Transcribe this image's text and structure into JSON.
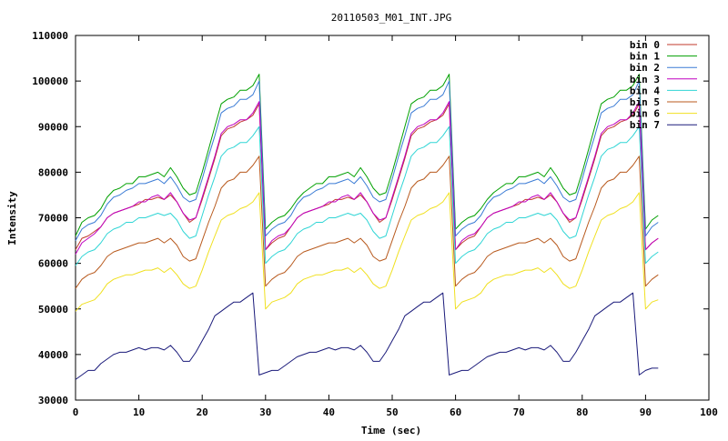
{
  "chart_data": {
    "type": "line",
    "title": "20110503_M01_INT.JPG",
    "xlabel": "Time (sec)",
    "ylabel": "Intensity",
    "xlim": [
      0,
      100
    ],
    "ylim": [
      30000,
      110000
    ],
    "xticks": [
      0,
      10,
      20,
      30,
      40,
      50,
      60,
      70,
      80,
      90,
      100
    ],
    "yticks": [
      30000,
      40000,
      50000,
      60000,
      70000,
      80000,
      90000,
      100000,
      110000
    ],
    "grid": false,
    "legend_position": "top-right",
    "x": [
      0,
      1,
      2,
      3,
      4,
      5,
      6,
      7,
      8,
      9,
      10,
      11,
      12,
      13,
      14,
      15,
      16,
      17,
      18,
      19,
      20,
      21,
      22,
      23,
      24,
      25,
      26,
      27,
      28,
      29,
      30,
      31,
      32,
      33,
      34,
      35,
      36,
      37,
      38,
      39,
      40,
      41,
      42,
      43,
      44,
      45,
      46,
      47,
      48,
      49,
      50,
      51,
      52,
      53,
      54,
      55,
      56,
      57,
      58,
      59,
      60,
      61,
      62,
      63,
      64,
      65,
      66,
      67,
      68,
      69,
      70,
      71,
      72,
      73,
      74,
      75,
      76,
      77,
      78,
      79,
      80,
      81,
      82,
      83,
      84,
      85,
      86,
      87,
      88,
      89,
      90,
      91,
      92
    ],
    "series": [
      {
        "name": "bin 0",
        "color": "#c0392b",
        "values": [
          63000,
          65500,
          66000,
          67000,
          68000,
          70000,
          71000,
          71500,
          72000,
          72500,
          73000,
          74000,
          74000,
          74500,
          74000,
          75000,
          73500,
          71000,
          69000,
          70000,
          74000,
          78500,
          83000,
          88000,
          89500,
          90000,
          91000,
          91500,
          92500,
          95000,
          63000,
          64500,
          65500,
          66000,
          68000,
          70000,
          71000,
          71500,
          72000,
          72500,
          73000,
          74000,
          74000,
          74500,
          74000,
          75000,
          73500,
          71000,
          69000,
          70000,
          74000,
          78500,
          83000,
          88000,
          89500,
          90000,
          91000,
          91500,
          92500,
          95000,
          63000,
          64500,
          65500,
          66000,
          68000,
          70000,
          71000,
          71500,
          72000,
          72500,
          73000,
          74000,
          74000,
          74500,
          74000,
          75000,
          73500,
          71000,
          69000,
          70000,
          74000,
          78500,
          83000,
          88000,
          89500,
          90000,
          91000,
          91500,
          92500,
          95000,
          63000,
          64500,
          65500
        ]
      },
      {
        "name": "bin 1",
        "color": "#00a000",
        "values": [
          66000,
          69000,
          70000,
          70500,
          72000,
          74500,
          76000,
          76500,
          77500,
          77500,
          79000,
          79000,
          79500,
          80000,
          79000,
          81000,
          79000,
          76500,
          75000,
          75500,
          80000,
          85000,
          90000,
          95000,
          96000,
          96500,
          98000,
          98000,
          99000,
          101500,
          67500,
          69000,
          70000,
          70500,
          72000,
          74000,
          75500,
          76500,
          77500,
          77500,
          79000,
          79000,
          79500,
          80000,
          79000,
          81000,
          79000,
          76500,
          75000,
          75500,
          80000,
          85000,
          90000,
          95000,
          96000,
          96500,
          98000,
          98000,
          99000,
          101500,
          67500,
          69000,
          70000,
          70500,
          72000,
          74000,
          75500,
          76500,
          77500,
          77500,
          79000,
          79000,
          79500,
          80000,
          79000,
          81000,
          79000,
          76500,
          75000,
          75500,
          80000,
          85000,
          90000,
          95000,
          96000,
          96500,
          98000,
          98000,
          99000,
          101500,
          67500,
          69500,
          70500
        ]
      },
      {
        "name": "bin 2",
        "color": "#3a7bd5",
        "values": [
          65000,
          67500,
          68500,
          69000,
          70500,
          73000,
          74500,
          75000,
          76000,
          76500,
          77500,
          77500,
          78000,
          78500,
          77500,
          79000,
          77000,
          74500,
          73500,
          74000,
          78500,
          83500,
          88000,
          93000,
          94000,
          94500,
          96000,
          96000,
          97000,
          100000,
          66000,
          67500,
          68500,
          69000,
          70500,
          73000,
          74500,
          75000,
          76000,
          76500,
          77500,
          77500,
          78000,
          78500,
          77500,
          79000,
          77000,
          74500,
          73500,
          74000,
          78500,
          83500,
          88000,
          93000,
          94000,
          94500,
          96000,
          96000,
          97000,
          100000,
          66000,
          67500,
          68500,
          69000,
          70500,
          73000,
          74500,
          75000,
          76000,
          76500,
          77500,
          77500,
          78000,
          78500,
          77500,
          79000,
          77000,
          74500,
          73500,
          74000,
          78500,
          83500,
          88000,
          93000,
          94000,
          94500,
          96000,
          96000,
          97000,
          100000,
          66000,
          68000,
          69000
        ]
      },
      {
        "name": "bin 3",
        "color": "#c000c0",
        "values": [
          62000,
          64500,
          65500,
          66500,
          68000,
          70000,
          71000,
          71500,
          72000,
          72500,
          73500,
          73500,
          74500,
          75000,
          74000,
          75500,
          73500,
          71000,
          69500,
          70000,
          74500,
          79000,
          83500,
          88500,
          90000,
          90500,
          91500,
          91500,
          93000,
          95500,
          63000,
          65000,
          66000,
          66500,
          68000,
          70000,
          71000,
          71500,
          72000,
          72500,
          73500,
          73500,
          74500,
          75000,
          74000,
          75500,
          73500,
          71000,
          69500,
          70000,
          74500,
          79000,
          83500,
          88500,
          90000,
          90500,
          91500,
          91500,
          93000,
          95500,
          63000,
          65000,
          66000,
          66500,
          68000,
          70000,
          71000,
          71500,
          72000,
          72500,
          73500,
          73500,
          74500,
          75000,
          74000,
          75500,
          73500,
          71000,
          69500,
          70000,
          74500,
          79000,
          83500,
          88500,
          90000,
          90500,
          91500,
          91500,
          93000,
          95500,
          63000,
          64500,
          65500
        ]
      },
      {
        "name": "bin 4",
        "color": "#30d5d5",
        "values": [
          59500,
          61500,
          62500,
          63000,
          64500,
          66500,
          67500,
          68000,
          69000,
          69000,
          70000,
          70000,
          70500,
          71000,
          70500,
          71000,
          69500,
          67000,
          65500,
          66000,
          70500,
          75000,
          79000,
          83500,
          85000,
          85500,
          86500,
          86500,
          88000,
          90000,
          60000,
          61500,
          62500,
          63000,
          64500,
          66500,
          67500,
          68000,
          69000,
          69000,
          70000,
          70000,
          70500,
          71000,
          70500,
          71000,
          69500,
          67000,
          65500,
          66000,
          70500,
          75000,
          79000,
          83500,
          85000,
          85500,
          86500,
          86500,
          88000,
          90000,
          60000,
          61500,
          62500,
          63000,
          64500,
          66500,
          67500,
          68000,
          69000,
          69000,
          70000,
          70000,
          70500,
          71000,
          70500,
          71000,
          69500,
          67000,
          65500,
          66000,
          70500,
          75000,
          79000,
          83500,
          85000,
          85500,
          86500,
          86500,
          88000,
          90000,
          60000,
          61500,
          62500
        ]
      },
      {
        "name": "bin 5",
        "color": "#b85a1e",
        "values": [
          54500,
          56500,
          57500,
          58000,
          59500,
          61500,
          62500,
          63000,
          63500,
          64000,
          64500,
          64500,
          65000,
          65500,
          64500,
          65500,
          64000,
          61500,
          60500,
          61000,
          65000,
          69000,
          72500,
          76500,
          78000,
          78500,
          80000,
          80000,
          81500,
          83500,
          55000,
          56500,
          57500,
          58000,
          59500,
          61500,
          62500,
          63000,
          63500,
          64000,
          64500,
          64500,
          65000,
          65500,
          64500,
          65500,
          64000,
          61500,
          60500,
          61000,
          65000,
          69000,
          72500,
          76500,
          78000,
          78500,
          80000,
          80000,
          81500,
          83500,
          55000,
          56500,
          57500,
          58000,
          59500,
          61500,
          62500,
          63000,
          63500,
          64000,
          64500,
          64500,
          65000,
          65500,
          64500,
          65500,
          64000,
          61500,
          60500,
          61000,
          65000,
          69000,
          72500,
          76500,
          78000,
          78500,
          80000,
          80000,
          81500,
          83500,
          55000,
          56500,
          57500
        ]
      },
      {
        "name": "bin 6",
        "color": "#f0e020",
        "values": [
          49500,
          51000,
          51500,
          52000,
          53500,
          55500,
          56500,
          57000,
          57500,
          57500,
          58000,
          58500,
          58500,
          59000,
          58000,
          59000,
          57500,
          55500,
          54500,
          55000,
          58500,
          62500,
          66000,
          69500,
          70500,
          71000,
          72000,
          72500,
          73500,
          75500,
          50000,
          51500,
          52000,
          52500,
          53500,
          55500,
          56500,
          57000,
          57500,
          57500,
          58000,
          58500,
          58500,
          59000,
          58000,
          59000,
          57500,
          55500,
          54500,
          55000,
          58500,
          62500,
          66000,
          69500,
          70500,
          71000,
          72000,
          72500,
          73500,
          75500,
          50000,
          51500,
          52000,
          52500,
          53500,
          55500,
          56500,
          57000,
          57500,
          57500,
          58000,
          58500,
          58500,
          59000,
          58000,
          59000,
          57500,
          55500,
          54500,
          55000,
          58500,
          62500,
          66000,
          69500,
          70500,
          71000,
          72000,
          72500,
          73500,
          75500,
          50000,
          51500,
          52000
        ]
      },
      {
        "name": "bin 7",
        "color": "#1a1a7a",
        "values": [
          34500,
          35500,
          36500,
          36500,
          38000,
          39000,
          40000,
          40500,
          40500,
          41000,
          41500,
          41000,
          41500,
          41500,
          41000,
          42000,
          40500,
          38500,
          38500,
          40500,
          43000,
          45500,
          48500,
          49500,
          50500,
          51500,
          51500,
          52500,
          53500,
          35500,
          36000,
          36500,
          36500,
          37500,
          38500,
          39500,
          40000,
          40500,
          40500,
          41000,
          41500,
          41000,
          41500,
          41500,
          41000,
          42000,
          40500,
          38500,
          38500,
          40500,
          43000,
          45500,
          48500,
          49500,
          50500,
          51500,
          51500,
          52500,
          53500,
          35500,
          36000,
          36500,
          36500,
          37500,
          38500,
          39500,
          40000,
          40500,
          40500,
          41000,
          41500,
          41000,
          41500,
          41500,
          41000,
          42000,
          40500,
          38500,
          38500,
          40500,
          43000,
          45500,
          48500,
          49500,
          50500,
          51500,
          51500,
          52500,
          53500,
          35500,
          36500,
          37000,
          37000
        ]
      }
    ]
  }
}
